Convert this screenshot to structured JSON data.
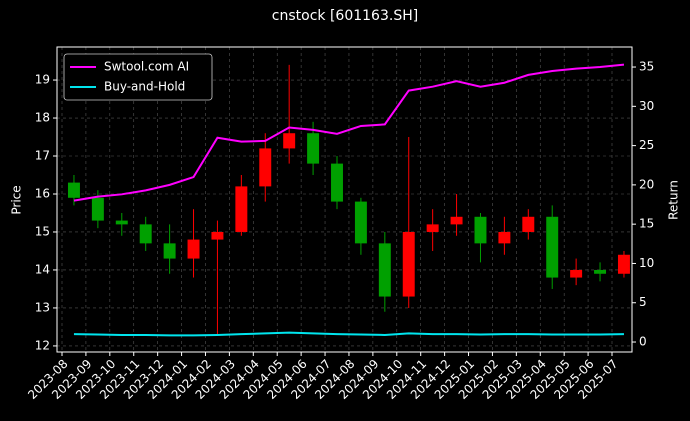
{
  "chart_data": {
    "type": "candlestick",
    "title": "cnstock [601163.SH]",
    "ylabel": "Price",
    "y2label": "Return",
    "x": [
      "2023-08",
      "2023-09",
      "2023-10",
      "2023-11",
      "2023-12",
      "2024-01",
      "2024-02",
      "2024-03",
      "2024-04",
      "2024-05",
      "2024-06",
      "2024-07",
      "2024-08",
      "2024-09",
      "2024-10",
      "2024-11",
      "2024-12",
      "2025-01",
      "2025-02",
      "2025-03",
      "2025-04",
      "2025-05",
      "2025-06",
      "2025-07"
    ],
    "candles": {
      "up_color": "#ff0000",
      "down_color": "#00a000",
      "open": [
        16.3,
        15.9,
        15.3,
        15.2,
        14.7,
        14.3,
        14.8,
        15.0,
        16.2,
        17.2,
        17.6,
        16.8,
        15.8,
        14.7,
        13.3,
        15.0,
        15.2,
        15.4,
        14.7,
        15.0,
        15.4,
        13.8,
        14.0,
        13.9
      ],
      "high": [
        16.5,
        16.1,
        15.5,
        15.4,
        15.2,
        15.6,
        15.3,
        16.5,
        17.6,
        19.4,
        17.9,
        17.0,
        15.9,
        15.0,
        17.5,
        15.6,
        16.0,
        15.5,
        15.4,
        15.6,
        15.7,
        14.3,
        14.2,
        14.5
      ],
      "low": [
        15.7,
        15.1,
        14.9,
        14.5,
        13.9,
        13.8,
        12.3,
        14.9,
        15.8,
        16.8,
        16.5,
        15.6,
        14.4,
        12.9,
        13.0,
        14.5,
        14.9,
        14.2,
        14.4,
        14.8,
        13.5,
        13.6,
        13.7,
        13.8
      ],
      "close": [
        15.9,
        15.3,
        15.2,
        14.7,
        14.3,
        14.8,
        15.0,
        16.2,
        17.2,
        17.6,
        16.8,
        15.8,
        14.7,
        13.3,
        15.0,
        15.2,
        15.4,
        14.7,
        15.0,
        15.4,
        13.8,
        14.0,
        13.9,
        14.4
      ]
    },
    "series": [
      {
        "name": "Swtool.com AI",
        "color": "#ff00ff",
        "axis": "y2",
        "values": [
          18,
          18.5,
          18.8,
          19.3,
          20,
          21,
          26,
          25.5,
          25.6,
          27.3,
          27,
          26.5,
          27.5,
          27.7,
          32,
          32.5,
          33.2,
          32.5,
          33,
          34,
          34.5,
          34.8,
          35,
          35.3
        ]
      },
      {
        "name": "Buy-and-Hold",
        "color": "#00e5ee",
        "axis": "y2",
        "values": [
          1.0,
          0.95,
          0.9,
          0.9,
          0.85,
          0.85,
          0.9,
          1.0,
          1.1,
          1.2,
          1.1,
          1.0,
          0.95,
          0.9,
          1.1,
          1.0,
          1.0,
          0.95,
          1.0,
          1.0,
          0.95,
          0.95,
          0.95,
          1.0
        ]
      }
    ],
    "ylim": [
      11.84,
      19.87
    ],
    "yticks": [
      12,
      13,
      14,
      15,
      16,
      17,
      18,
      19
    ],
    "y2lim": [
      -1.27,
      37.55
    ],
    "y2ticks": [
      0,
      5,
      10,
      15,
      20,
      25,
      30,
      35
    ],
    "grid": true,
    "legend": "upper left"
  }
}
